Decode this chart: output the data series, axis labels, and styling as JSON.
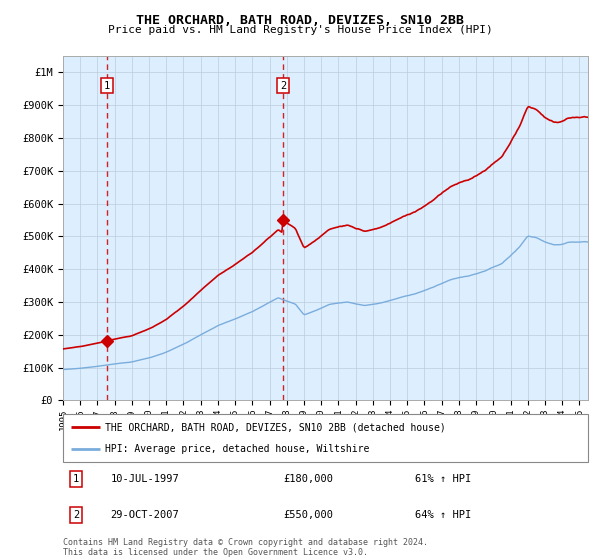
{
  "title": "THE ORCHARD, BATH ROAD, DEVIZES, SN10 2BB",
  "subtitle": "Price paid vs. HM Land Registry's House Price Index (HPI)",
  "legend_line1": "THE ORCHARD, BATH ROAD, DEVIZES, SN10 2BB (detached house)",
  "legend_line2": "HPI: Average price, detached house, Wiltshire",
  "purchase1_date": "10-JUL-1997",
  "purchase1_price": 180000,
  "purchase1_label": "61% ↑ HPI",
  "purchase2_date": "29-OCT-2007",
  "purchase2_price": 550000,
  "purchase2_label": "64% ↑ HPI",
  "ylabel_values": [
    "£0",
    "£100K",
    "£200K",
    "£300K",
    "£400K",
    "£500K",
    "£600K",
    "£700K",
    "£800K",
    "£900K",
    "£1M"
  ],
  "ylim": [
    0,
    1050000
  ],
  "hpi_color": "#7aaddc",
  "property_color": "#cc0000",
  "bg_color": "#ddeeff",
  "grid_color": "#bbccdd",
  "footnote": "Contains HM Land Registry data © Crown copyright and database right 2024.\nThis data is licensed under the Open Government Licence v3.0."
}
